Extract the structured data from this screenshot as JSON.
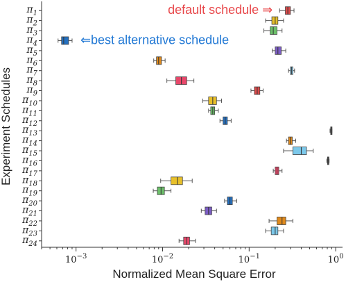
{
  "chart_data": {
    "type": "box",
    "xlabel": "Normalized Mean Square Error",
    "ylabel": "Experiment Schedules",
    "xscale": "log",
    "xlim": [
      0.0004,
      1.2
    ],
    "xticks": [
      {
        "value": 0.001,
        "base": "10",
        "exp": "−3"
      },
      {
        "value": 0.01,
        "base": "10",
        "exp": "−2"
      },
      {
        "value": 0.1,
        "base": "10",
        "exp": "−1"
      },
      {
        "value": 1,
        "base": "10",
        "exp": "0"
      }
    ],
    "grid": false,
    "annotations": [
      {
        "text": "default schedule ⇒",
        "color": "#e8474a",
        "row": 0
      },
      {
        "text": "⇐best alternative schedule",
        "color": "#1f77d4",
        "row": 3
      }
    ],
    "categories": [
      {
        "sym": "π",
        "sub": "1",
        "color": "#dc4b4b",
        "min": 0.225,
        "q1": 0.262,
        "median": 0.28,
        "q3": 0.3,
        "max": 0.33
      },
      {
        "sym": "π",
        "sub": "2",
        "color": "#e8c02a",
        "min": 0.155,
        "q1": 0.183,
        "median": 0.2,
        "q3": 0.215,
        "max": 0.25
      },
      {
        "sym": "π",
        "sub": "3",
        "color": "#6cc06a",
        "min": 0.148,
        "q1": 0.175,
        "median": 0.19,
        "q3": 0.21,
        "max": 0.24
      },
      {
        "sym": "π",
        "sub": "4",
        "color": "#2470c0",
        "min": 0.00062,
        "q1": 0.00068,
        "median": 0.00072,
        "q3": 0.00082,
        "max": 0.0009
      },
      {
        "sym": "π",
        "sub": "5",
        "color": "#7b5cc4",
        "min": 0.185,
        "q1": 0.2,
        "median": 0.215,
        "q3": 0.235,
        "max": 0.265
      },
      {
        "sym": "π",
        "sub": "6",
        "color": "#e08a1c",
        "min": 0.0079,
        "q1": 0.0085,
        "median": 0.009,
        "q3": 0.0097,
        "max": 0.0107
      },
      {
        "sym": "π",
        "sub": "7",
        "color": "#7cc8ea",
        "min": 0.285,
        "q1": 0.3,
        "median": 0.31,
        "q3": 0.32,
        "max": 0.335
      },
      {
        "sym": "π",
        "sub": "8",
        "color": "#e8476a",
        "min": 0.0112,
        "q1": 0.0142,
        "median": 0.0165,
        "q3": 0.019,
        "max": 0.023
      },
      {
        "sym": "π",
        "sub": "9",
        "color": "#dc4b4b",
        "min": 0.105,
        "q1": 0.115,
        "median": 0.124,
        "q3": 0.133,
        "max": 0.145
      },
      {
        "sym": "π",
        "sub": "10",
        "color": "#e8c02a",
        "min": 0.029,
        "q1": 0.034,
        "median": 0.038,
        "q3": 0.042,
        "max": 0.048
      },
      {
        "sym": "π",
        "sub": "11",
        "color": "#6cc06a",
        "min": 0.034,
        "q1": 0.036,
        "median": 0.038,
        "q3": 0.04,
        "max": 0.044
      },
      {
        "sym": "π",
        "sub": "12",
        "color": "#2470c0",
        "min": 0.046,
        "q1": 0.05,
        "median": 0.053,
        "q3": 0.056,
        "max": 0.062
      },
      {
        "sym": "π",
        "sub": "13",
        "color": "#555555",
        "min": 0.86,
        "q1": 0.875,
        "median": 0.885,
        "q3": 0.895,
        "max": 0.905
      },
      {
        "sym": "π",
        "sub": "14",
        "color": "#e08a1c",
        "min": 0.27,
        "q1": 0.285,
        "median": 0.3,
        "q3": 0.315,
        "max": 0.345
      },
      {
        "sym": "π",
        "sub": "15",
        "color": "#7cc8ea",
        "min": 0.25,
        "q1": 0.32,
        "median": 0.4,
        "q3": 0.46,
        "max": 0.55
      },
      {
        "sym": "π",
        "sub": "16",
        "color": "#555555",
        "min": 0.79,
        "q1": 0.805,
        "median": 0.815,
        "q3": 0.825,
        "max": 0.84
      },
      {
        "sym": "π",
        "sub": "17",
        "color": "#e8476a",
        "min": 0.19,
        "q1": 0.2,
        "median": 0.21,
        "q3": 0.22,
        "max": 0.24
      },
      {
        "sym": "π",
        "sub": "18",
        "color": "#e8c02a",
        "min": 0.0095,
        "q1": 0.0125,
        "median": 0.0148,
        "q3": 0.017,
        "max": 0.022
      },
      {
        "sym": "π",
        "sub": "19",
        "color": "#6cc06a",
        "min": 0.0078,
        "q1": 0.0087,
        "median": 0.0096,
        "q3": 0.0105,
        "max": 0.0125
      },
      {
        "sym": "π",
        "sub": "20",
        "color": "#2470c0",
        "min": 0.052,
        "q1": 0.056,
        "median": 0.06,
        "q3": 0.064,
        "max": 0.072
      },
      {
        "sym": "π",
        "sub": "21",
        "color": "#7b5cc4",
        "min": 0.028,
        "q1": 0.031,
        "median": 0.034,
        "q3": 0.037,
        "max": 0.042
      },
      {
        "sym": "π",
        "sub": "22",
        "color": "#e08a1c",
        "min": 0.17,
        "q1": 0.21,
        "median": 0.24,
        "q3": 0.265,
        "max": 0.32
      },
      {
        "sym": "π",
        "sub": "23",
        "color": "#7cc8ea",
        "min": 0.155,
        "q1": 0.18,
        "median": 0.2,
        "q3": 0.215,
        "max": 0.25
      },
      {
        "sym": "π",
        "sub": "24",
        "color": "#e8476a",
        "min": 0.0155,
        "q1": 0.0175,
        "median": 0.019,
        "q3": 0.0205,
        "max": 0.024
      }
    ]
  }
}
